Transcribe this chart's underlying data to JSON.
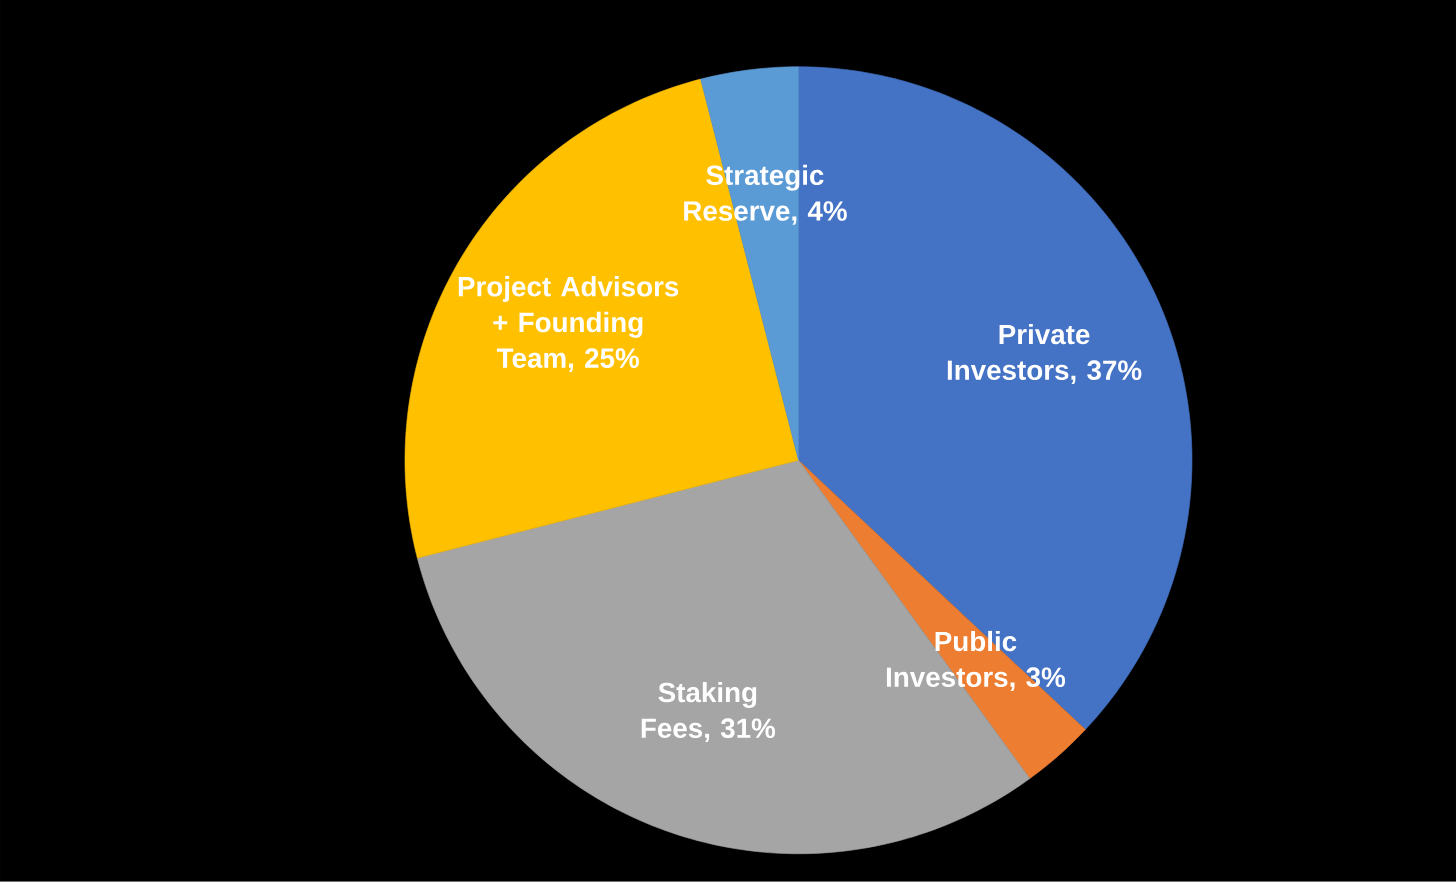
{
  "chart_data": {
    "type": "pie",
    "categories": [
      "Private Investors",
      "Public Investors",
      "Staking Fees",
      "Project Advisors + Founding Team",
      "Strategic Reserve"
    ],
    "values": [
      37,
      3,
      31,
      25,
      4
    ],
    "colors": [
      "#4472c4",
      "#ed7d31",
      "#a5a5a5",
      "#ffc000",
      "#5b9bd5"
    ],
    "value_labels": [
      ", 37%",
      ", 3%",
      ", 31%",
      ", 25%",
      ", 4%"
    ]
  }
}
